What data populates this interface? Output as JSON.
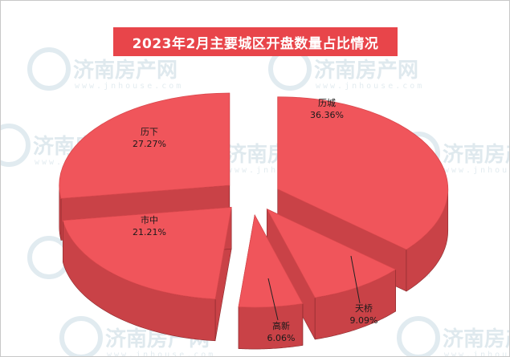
{
  "watermark": {
    "brand": "济南房产网",
    "url": "www.jnhouse.com"
  },
  "chart_data": {
    "type": "pie",
    "title": "2023年2月主要城区开盘数量占比情况",
    "colors": {
      "title_bg": "#e8454a",
      "slice_top": "#f0555b",
      "slice_side": "#c94247",
      "edge": "#8a2a2d"
    },
    "slices": [
      {
        "name": "历城",
        "value": 36.36,
        "label": "36.36%"
      },
      {
        "name": "天桥",
        "value": 9.09,
        "label": "9.09%"
      },
      {
        "name": "高新",
        "value": 6.06,
        "label": "6.06%"
      },
      {
        "name": "市中",
        "value": 21.21,
        "label": "21.21%"
      },
      {
        "name": "历下",
        "value": 27.27,
        "label": "27.27%"
      }
    ]
  }
}
